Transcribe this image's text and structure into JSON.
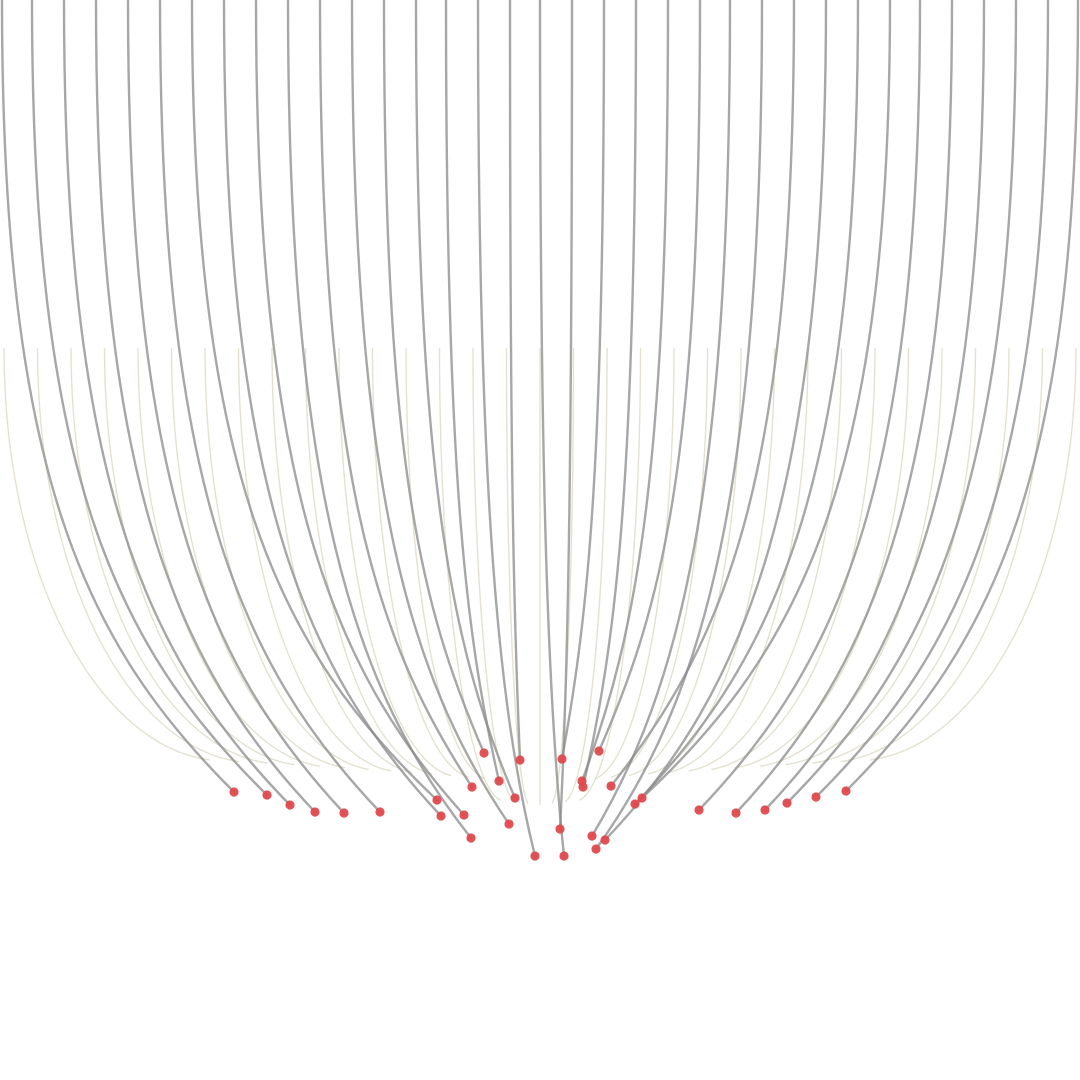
{
  "colors": {
    "background": "#ffffff",
    "guide_stroke": "#ddd9c8",
    "curve_stroke": "#8a8a8a",
    "endpoint_fill": "#e0484c"
  },
  "guides": {
    "count": 33
  },
  "curves": {
    "count": 35
  },
  "endpoints": {
    "shape": "circle",
    "count": 35
  }
}
